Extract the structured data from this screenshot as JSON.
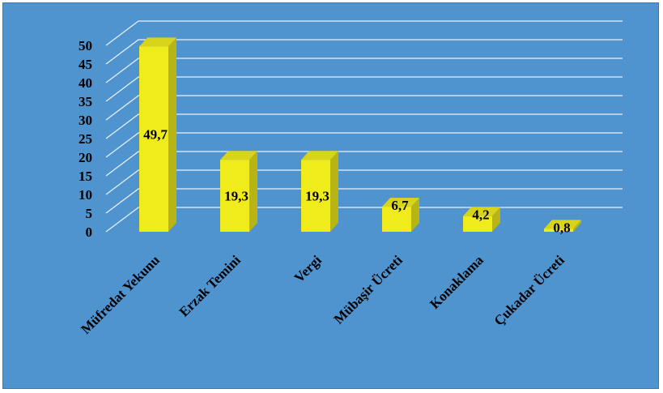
{
  "chart_data": {
    "type": "bar",
    "categories": [
      "Müfredat Yekunu",
      "Erzak Temini",
      "Vergi",
      "Mübaşir Ücreti",
      "Konaklama",
      "Çukadar Ücreti"
    ],
    "values": [
      49.7,
      19.3,
      19.3,
      6.7,
      4.2,
      0.8
    ],
    "data_labels": [
      "49,7",
      "19,3",
      "19,3",
      "6,7",
      "4,2",
      "0,8"
    ],
    "y_ticks": [
      "0",
      "5",
      "10",
      "15",
      "20",
      "25",
      "30",
      "35",
      "40",
      "45",
      "50"
    ],
    "ylim": [
      0,
      50
    ],
    "grid": true,
    "legend": "none",
    "style": "3d-column",
    "colors": {
      "background": "#4f93cf",
      "bar_front": "#f0ec1c",
      "bar_top": "#d8d41a",
      "bar_side": "#b8b414",
      "gridline": "#e8f1fa"
    }
  }
}
